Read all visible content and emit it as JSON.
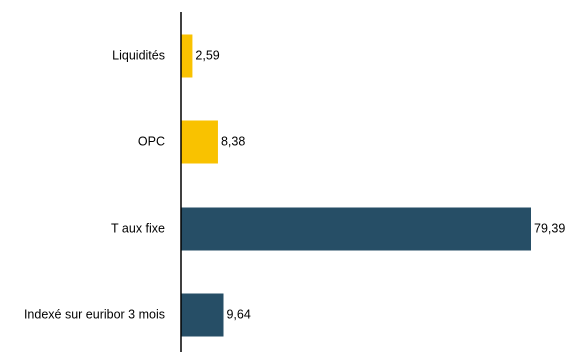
{
  "chart_data": {
    "type": "bar",
    "orientation": "horizontal",
    "categories": [
      "Liquidités",
      "OPC",
      "T aux fixe",
      "Indexé sur euribor 3 mois"
    ],
    "values": [
      2.59,
      8.38,
      79.39,
      9.64
    ],
    "value_labels": [
      "2,59",
      "8,38",
      "79,39",
      "9,64"
    ],
    "colors": [
      "#F9C200",
      "#F9C200",
      "#264E66",
      "#264E66"
    ],
    "xlim": [
      0,
      79.39
    ],
    "grid": false,
    "legend": "none"
  }
}
